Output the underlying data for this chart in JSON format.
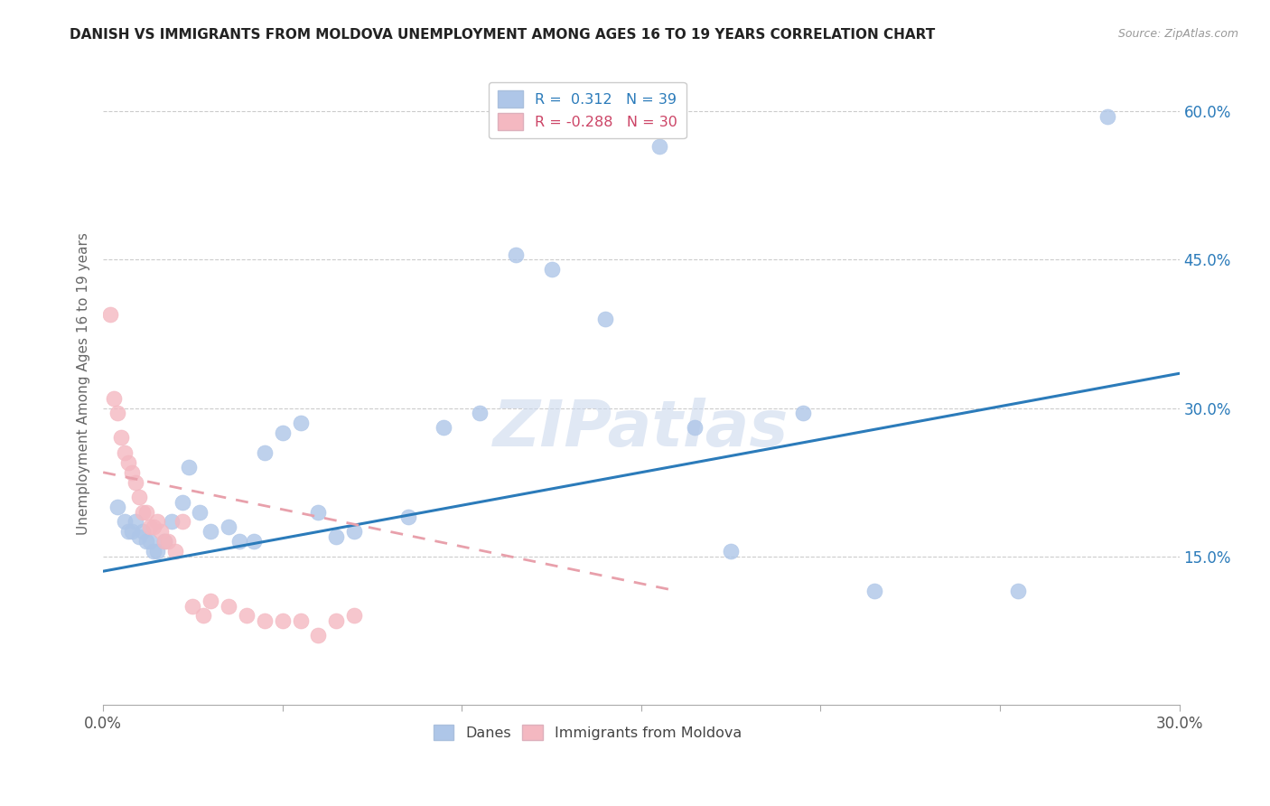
{
  "title": "DANISH VS IMMIGRANTS FROM MOLDOVA UNEMPLOYMENT AMONG AGES 16 TO 19 YEARS CORRELATION CHART",
  "source": "Source: ZipAtlas.com",
  "ylabel": "Unemployment Among Ages 16 to 19 years",
  "xlim": [
    0.0,
    0.3
  ],
  "ylim": [
    0.0,
    0.65
  ],
  "xtick_positions": [
    0.0,
    0.05,
    0.1,
    0.15,
    0.2,
    0.25,
    0.3
  ],
  "xtick_labels": [
    "0.0%",
    "",
    "",
    "",
    "",
    "",
    "30.0%"
  ],
  "yticks_right": [
    0.15,
    0.3,
    0.45,
    0.6
  ],
  "danes_color": "#aec6e8",
  "moldova_color": "#f4b8c1",
  "danes_line_color": "#2b7bba",
  "moldova_line_color": "#e8a0ab",
  "watermark": "ZIPatlas",
  "danes_x": [
    0.004,
    0.006,
    0.007,
    0.008,
    0.009,
    0.01,
    0.011,
    0.012,
    0.013,
    0.014,
    0.015,
    0.017,
    0.019,
    0.022,
    0.024,
    0.027,
    0.03,
    0.035,
    0.038,
    0.042,
    0.045,
    0.05,
    0.055,
    0.06,
    0.065,
    0.07,
    0.085,
    0.095,
    0.105,
    0.115,
    0.125,
    0.14,
    0.155,
    0.165,
    0.175,
    0.195,
    0.215,
    0.255,
    0.28
  ],
  "danes_y": [
    0.2,
    0.185,
    0.175,
    0.175,
    0.185,
    0.17,
    0.175,
    0.165,
    0.165,
    0.155,
    0.155,
    0.165,
    0.185,
    0.205,
    0.24,
    0.195,
    0.175,
    0.18,
    0.165,
    0.165,
    0.255,
    0.275,
    0.285,
    0.195,
    0.17,
    0.175,
    0.19,
    0.28,
    0.295,
    0.455,
    0.44,
    0.39,
    0.565,
    0.28,
    0.155,
    0.295,
    0.115,
    0.115,
    0.595
  ],
  "moldova_x": [
    0.002,
    0.003,
    0.004,
    0.005,
    0.006,
    0.007,
    0.008,
    0.009,
    0.01,
    0.011,
    0.012,
    0.013,
    0.014,
    0.015,
    0.016,
    0.017,
    0.018,
    0.02,
    0.022,
    0.025,
    0.028,
    0.03,
    0.035,
    0.04,
    0.045,
    0.05,
    0.055,
    0.06,
    0.065,
    0.07
  ],
  "moldova_y": [
    0.395,
    0.31,
    0.295,
    0.27,
    0.255,
    0.245,
    0.235,
    0.225,
    0.21,
    0.195,
    0.195,
    0.18,
    0.18,
    0.185,
    0.175,
    0.165,
    0.165,
    0.155,
    0.185,
    0.1,
    0.09,
    0.105,
    0.1,
    0.09,
    0.085,
    0.085,
    0.085,
    0.07,
    0.085,
    0.09
  ],
  "danes_trend_x": [
    0.0,
    0.3
  ],
  "danes_trend_y": [
    0.135,
    0.335
  ],
  "moldova_trend_x": [
    0.0,
    0.16
  ],
  "moldova_trend_y": [
    0.235,
    0.115
  ]
}
